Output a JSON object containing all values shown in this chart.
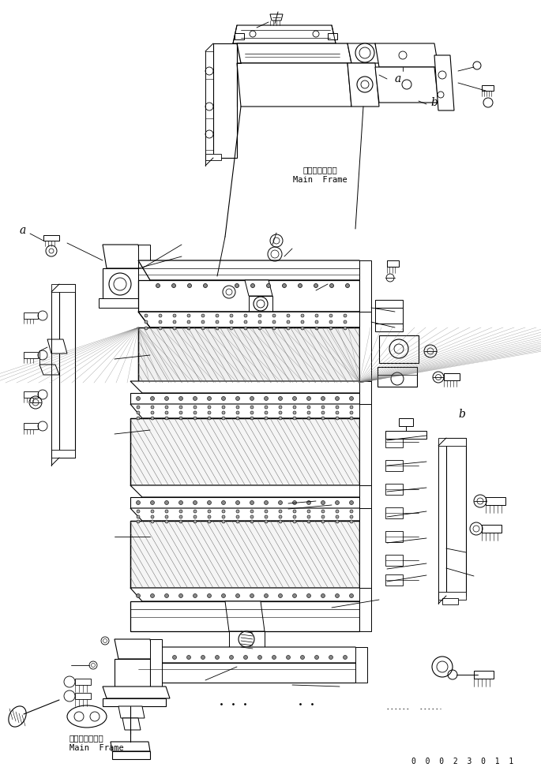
{
  "bg_color": "#ffffff",
  "line_color": "#000000",
  "fig_width": 6.85,
  "fig_height": 9.72,
  "dpi": 100,
  "bottom_code": "0  0  0  2  3  0  1  1",
  "main_frame_top_jp": "メインフレーム",
  "main_frame_top_en": "Main  Frame",
  "main_frame_bot_jp": "メインフレーム",
  "main_frame_bot_en": "Main  Frame"
}
